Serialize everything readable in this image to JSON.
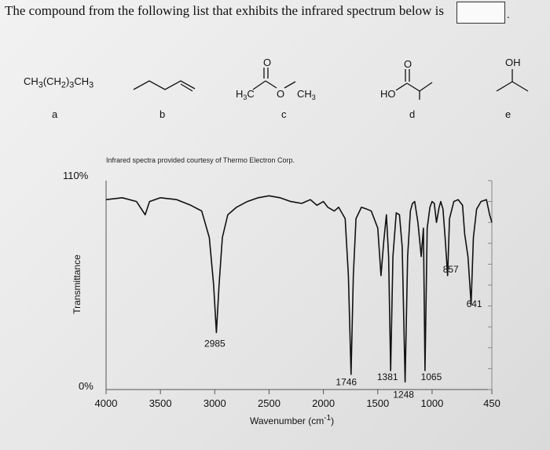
{
  "question": {
    "text": "The compound from the following list that exhibits the infrared spectrum below is",
    "answer_value": "",
    "period": "."
  },
  "compounds": [
    {
      "letter": "a",
      "formula": "CH3(CH2)3CH3"
    },
    {
      "letter": "b",
      "structure": "pent-1-ene skeletal"
    },
    {
      "letter": "c",
      "labels": [
        "O",
        "H3C",
        "O",
        "CH3"
      ]
    },
    {
      "letter": "d",
      "labels": [
        "O",
        "HO"
      ]
    },
    {
      "letter": "e",
      "labels": [
        "OH"
      ]
    }
  ],
  "chart_data": {
    "type": "line",
    "title": "Infrared spectra provided courtesy of Thermo Electron Corp.",
    "xlabel": "Wavenumber (cm-1)",
    "ylabel": "Transmittance",
    "xlim": [
      4000,
      450
    ],
    "ylim": [
      0,
      110
    ],
    "x_reversed": true,
    "y_tick_labels": [
      "110%",
      "0%"
    ],
    "x_tick_labels": [
      "4000",
      "3500",
      "3000",
      "2500",
      "2000",
      "1500",
      "1000",
      "450"
    ],
    "x_ticks": [
      4000,
      3500,
      3000,
      2500,
      2000,
      1500,
      1000,
      450
    ],
    "peak_labels": [
      {
        "x": 2985,
        "label": "2985"
      },
      {
        "x": 1746,
        "label": "1746"
      },
      {
        "x": 1381,
        "label": "1381"
      },
      {
        "x": 1248,
        "label": "1248"
      },
      {
        "x": 1065,
        "label": "1065"
      },
      {
        "x": 857,
        "label": "857"
      },
      {
        "x": 641,
        "label": "641"
      }
    ],
    "series": [
      {
        "points": [
          [
            4000,
            100
          ],
          [
            3850,
            101
          ],
          [
            3720,
            99
          ],
          [
            3640,
            92
          ],
          [
            3600,
            99
          ],
          [
            3500,
            101
          ],
          [
            3350,
            100
          ],
          [
            3220,
            97
          ],
          [
            3120,
            94
          ],
          [
            3050,
            80
          ],
          [
            3010,
            55
          ],
          [
            2985,
            30
          ],
          [
            2960,
            55
          ],
          [
            2930,
            80
          ],
          [
            2880,
            92
          ],
          [
            2800,
            96
          ],
          [
            2700,
            99
          ],
          [
            2600,
            101
          ],
          [
            2500,
            102
          ],
          [
            2400,
            101
          ],
          [
            2300,
            99
          ],
          [
            2200,
            98
          ],
          [
            2120,
            100
          ],
          [
            2060,
            97
          ],
          [
            2000,
            99
          ],
          [
            1960,
            96
          ],
          [
            1900,
            94
          ],
          [
            1860,
            96
          ],
          [
            1800,
            90
          ],
          [
            1770,
            60
          ],
          [
            1746,
            8
          ],
          [
            1725,
            60
          ],
          [
            1700,
            90
          ],
          [
            1650,
            96
          ],
          [
            1600,
            95
          ],
          [
            1560,
            94
          ],
          [
            1500,
            85
          ],
          [
            1470,
            60
          ],
          [
            1445,
            78
          ],
          [
            1420,
            92
          ],
          [
            1400,
            70
          ],
          [
            1381,
            10
          ],
          [
            1360,
            70
          ],
          [
            1330,
            93
          ],
          [
            1300,
            92
          ],
          [
            1275,
            75
          ],
          [
            1248,
            4
          ],
          [
            1225,
            70
          ],
          [
            1200,
            94
          ],
          [
            1180,
            98
          ],
          [
            1160,
            99
          ],
          [
            1130,
            88
          ],
          [
            1100,
            70
          ],
          [
            1080,
            85
          ],
          [
            1065,
            10
          ],
          [
            1045,
            85
          ],
          [
            1020,
            96
          ],
          [
            1000,
            99
          ],
          [
            980,
            98
          ],
          [
            960,
            88
          ],
          [
            935,
            96
          ],
          [
            920,
            99
          ],
          [
            900,
            95
          ],
          [
            880,
            80
          ],
          [
            857,
            60
          ],
          [
            840,
            90
          ],
          [
            800,
            99
          ],
          [
            760,
            100
          ],
          [
            720,
            97
          ],
          [
            700,
            82
          ],
          [
            670,
            70
          ],
          [
            641,
            45
          ],
          [
            620,
            80
          ],
          [
            590,
            95
          ],
          [
            550,
            99
          ],
          [
            500,
            100
          ],
          [
            470,
            92
          ],
          [
            450,
            88
          ]
        ]
      }
    ]
  }
}
